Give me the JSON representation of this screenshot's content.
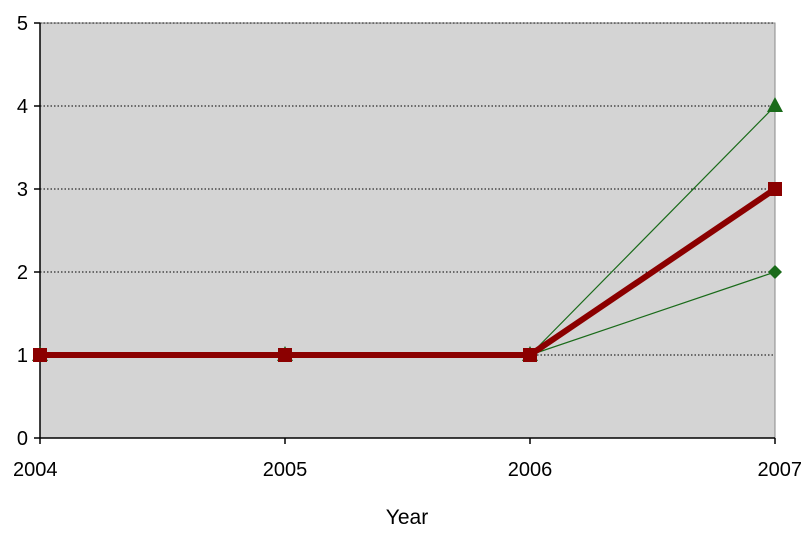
{
  "chart_data": {
    "type": "line",
    "title": "",
    "xlabel": "Year",
    "ylabel": "",
    "x": [
      2004,
      2005,
      2006,
      2007
    ],
    "xticks": [
      "2004",
      "2005",
      "2006",
      "2007"
    ],
    "ylim": [
      0,
      5
    ],
    "yticks": [
      "0",
      "1",
      "2",
      "3",
      "4",
      "5"
    ],
    "grid": "horizontal dotted",
    "legend": "none",
    "plot_background": "#d4d4d4",
    "series": [
      {
        "values": [
          1,
          1,
          1,
          4
        ],
        "color": "#1a6b1a",
        "marker": "triangle",
        "style": "thin"
      },
      {
        "values": [
          1,
          1,
          1,
          2
        ],
        "color": "#1a6b1a",
        "marker": "diamond",
        "style": "thin"
      },
      {
        "values": [
          1,
          1,
          1,
          3
        ],
        "color": "#8b0000",
        "marker": "square",
        "style": "thick"
      }
    ]
  }
}
